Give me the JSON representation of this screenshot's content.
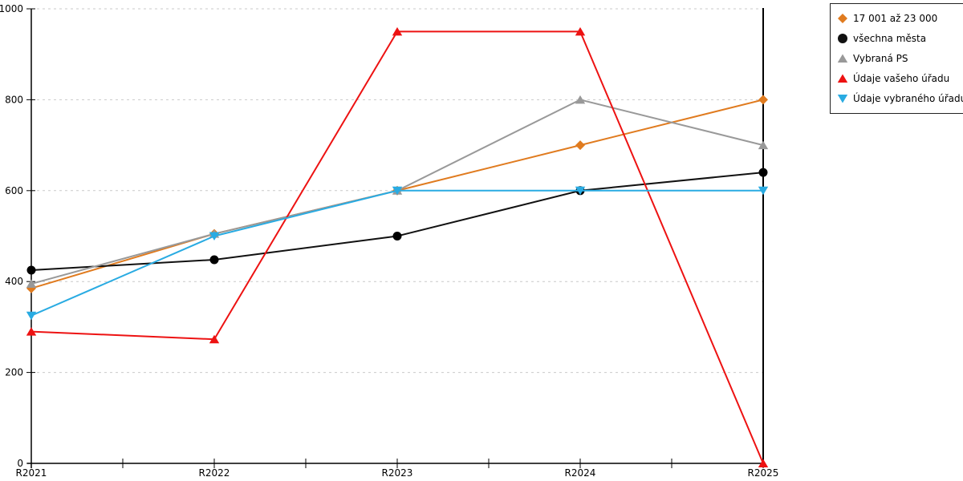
{
  "chart_data": {
    "type": "line",
    "title": "",
    "xlabel": "",
    "ylabel": "",
    "categories": [
      "R2021",
      "R2022",
      "R2023",
      "R2024",
      "R2025"
    ],
    "series": [
      {
        "name": "17 001 až 23 000",
        "color": "#E07B1F",
        "marker": "diamond",
        "values": [
          385,
          505,
          600,
          700,
          800
        ]
      },
      {
        "name": "všechna města",
        "color": "#111111",
        "marker": "circle",
        "values": [
          425,
          448,
          500,
          600,
          640
        ]
      },
      {
        "name": "Vybraná PS",
        "color": "#999999",
        "marker": "triangle-up",
        "values": [
          395,
          505,
          600,
          800,
          700
        ]
      },
      {
        "name": "Údaje vašeho úřadu",
        "color": "#ED1212",
        "marker": "triangle-up",
        "values": [
          290,
          273,
          950,
          950,
          0
        ]
      },
      {
        "name": "Údaje vybraného úřadu",
        "color": "#29ABE2",
        "marker": "triangle-down",
        "values": [
          325,
          500,
          600,
          600,
          600
        ]
      }
    ],
    "ylim": [
      0,
      1000
    ],
    "yticks": [
      0,
      200,
      400,
      600,
      800,
      1000
    ],
    "grid": "horizontal-dashed",
    "grid_color": "#C9C9C9",
    "axis_color": "#000000",
    "legend_position": "top-right"
  }
}
